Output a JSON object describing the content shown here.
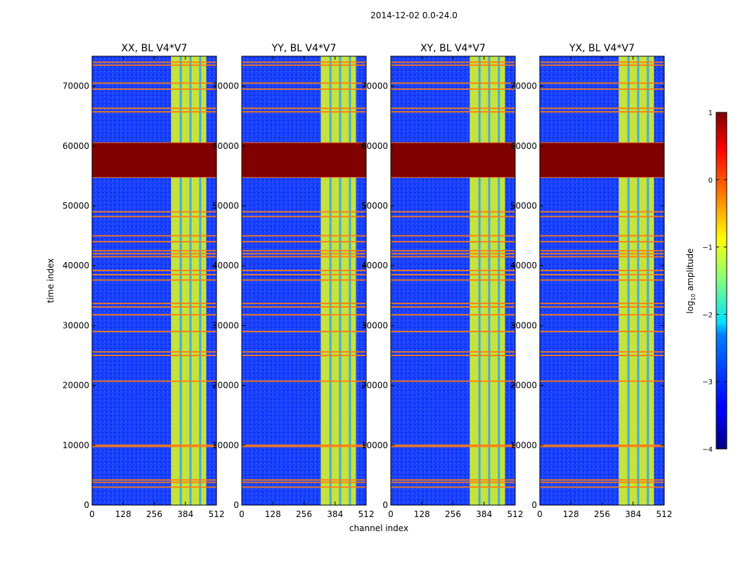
{
  "figure": {
    "suptitle": "2014-12-02 0.0-24.0"
  },
  "chart_data": {
    "type": "heatmap",
    "x": [
      0,
      128,
      256,
      384,
      512
    ],
    "xlim": [
      0,
      512
    ],
    "ylim": [
      0,
      75000
    ],
    "xlabel": "channel index",
    "ylabel": "time index",
    "x_ticks": [
      "0",
      "128",
      "256",
      "384",
      "512"
    ],
    "y_ticks": [
      "0",
      "10000",
      "20000",
      "30000",
      "40000",
      "50000",
      "60000",
      "70000"
    ],
    "y_tick_values": [
      0,
      10000,
      20000,
      30000,
      40000,
      50000,
      60000,
      70000
    ],
    "panels": [
      {
        "title": "XX, BL V4*V7",
        "show_ylabel": true,
        "show_xlabel": false
      },
      {
        "title": "YY, BL V4*V7",
        "show_ylabel": false,
        "show_xlabel": true
      },
      {
        "title": "XY, BL V4*V7",
        "show_ylabel": false,
        "show_xlabel": false
      },
      {
        "title": "YX, BL V4*V7",
        "show_ylabel": false,
        "show_xlabel": false
      }
    ],
    "features": {
      "background_level": -3.1,
      "saturated_block": {
        "y_start": 54800,
        "y_end": 60500,
        "level": 1
      },
      "bright_band": {
        "x_start": 325,
        "x_end": 470,
        "level": -1
      },
      "bright_band_gaps_x": [
        365,
        405,
        445
      ],
      "rfi_rows": [
        3000,
        3800,
        4200,
        9800,
        10000,
        20700,
        25000,
        25600,
        29000,
        31800,
        33100,
        33700,
        37600,
        38500,
        39200,
        41500,
        42000,
        42500,
        44000,
        45000,
        48200,
        49000,
        54800,
        60500,
        65700,
        66300,
        69500,
        70500,
        73500,
        74000
      ]
    },
    "colorbar": {
      "label": "log",
      "label_sub": "10",
      "label_rest": " amplitude",
      "range": [
        -4,
        1
      ],
      "ticks": [
        "1",
        "0",
        "−1",
        "−2",
        "−3",
        "−4"
      ],
      "tick_values": [
        1,
        0,
        -1,
        -2,
        -3,
        -4
      ],
      "colormap": "jet"
    }
  }
}
